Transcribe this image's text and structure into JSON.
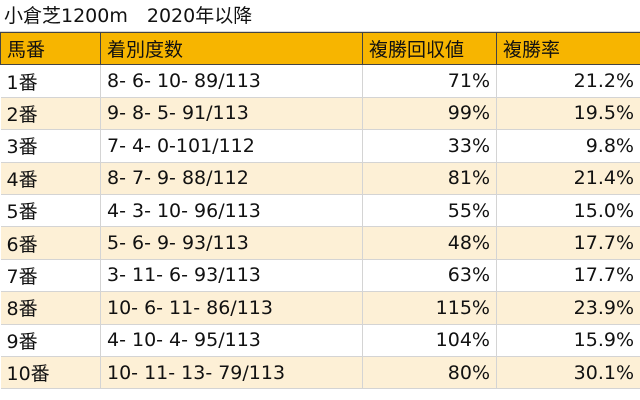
{
  "title": "小倉芝1200m　2020年以降",
  "table": {
    "header": [
      "馬番",
      "着別度数",
      "複勝回収値",
      "複勝率"
    ],
    "rows": [
      [
        "1番",
        "8- 6- 10- 89/113",
        "71%",
        "21.2%"
      ],
      [
        "2番",
        "9- 8- 5- 91/113",
        "99%",
        "19.5%"
      ],
      [
        "3番",
        "7- 4- 0-101/112",
        "33%",
        "9.8%"
      ],
      [
        "4番",
        "8- 7- 9- 88/112",
        "81%",
        "21.4%"
      ],
      [
        "5番",
        "4- 3- 10- 96/113",
        "55%",
        "15.0%"
      ],
      [
        "6番",
        "5- 6- 9- 93/113",
        "48%",
        "17.7%"
      ],
      [
        "7番",
        "3- 11- 6- 93/113",
        "63%",
        "17.7%"
      ],
      [
        "8番",
        "10- 6- 11- 86/113",
        "115%",
        "23.9%"
      ],
      [
        "9番",
        "4- 10- 4- 95/113",
        "104%",
        "15.9%"
      ],
      [
        "10番",
        "10- 11- 13- 79/113",
        "80%",
        "30.1%"
      ]
    ]
  }
}
